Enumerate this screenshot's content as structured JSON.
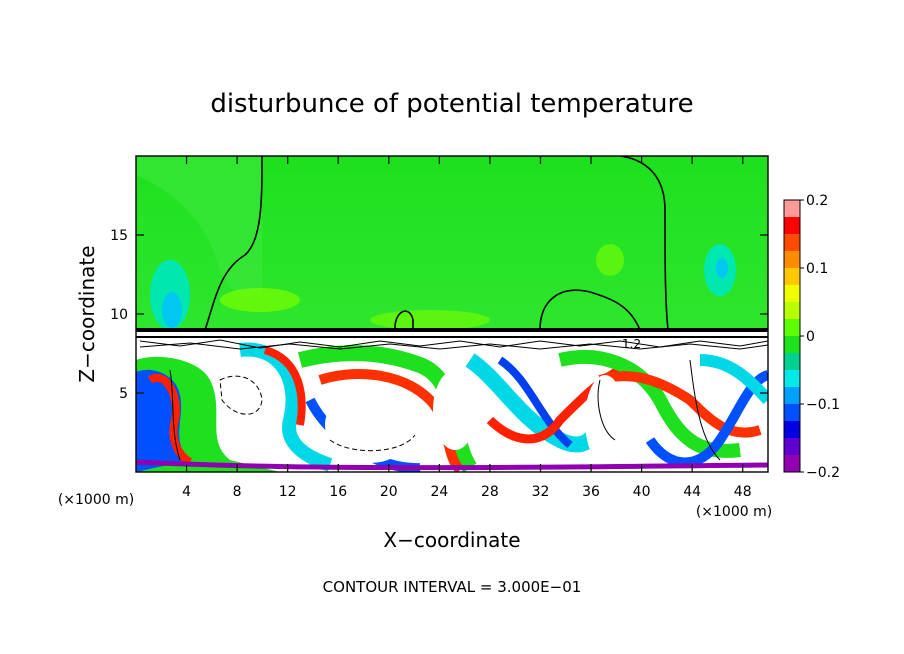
{
  "chart_data": {
    "type": "heatmap",
    "title": "disturbunce of potential temperature",
    "xlabel": "X−coordinate",
    "ylabel": "Z−coordinate",
    "xunit_left": "(×1000 m)",
    "xunit_right": "(×1000 m)",
    "footer": "CONTOUR INTERVAL = 3.000E−01",
    "xlim": [
      0,
      50
    ],
    "ylim": [
      0,
      20
    ],
    "xticks": [
      4,
      8,
      12,
      16,
      20,
      24,
      28,
      32,
      36,
      40,
      44,
      48
    ],
    "xtick_labels": [
      "4",
      "8",
      "12",
      "16",
      "20",
      "24",
      "28",
      "32",
      "36",
      "40",
      "44",
      "48"
    ],
    "yticks": [
      5,
      10,
      15
    ],
    "ytick_labels": [
      "5",
      "10",
      "15"
    ],
    "colorbar": {
      "range": [
        -0.2,
        0.2
      ],
      "ticks": [
        0.2,
        0.1,
        0,
        -0.1,
        -0.2
      ],
      "tick_labels": [
        "0.2",
        "0.1",
        "0",
        "−0.1",
        "−0.2"
      ],
      "colors": [
        "#ff9a9a",
        "#ff0000",
        "#ff4c00",
        "#ff8c00",
        "#ffc800",
        "#f0ff00",
        "#b8ff00",
        "#5eff00",
        "#1ee01e",
        "#00d090",
        "#00e8e8",
        "#00a0ff",
        "#0050ff",
        "#0000e0",
        "#6000d0",
        "#9000b0"
      ]
    },
    "annotation_in_plot": "1.2"
  }
}
